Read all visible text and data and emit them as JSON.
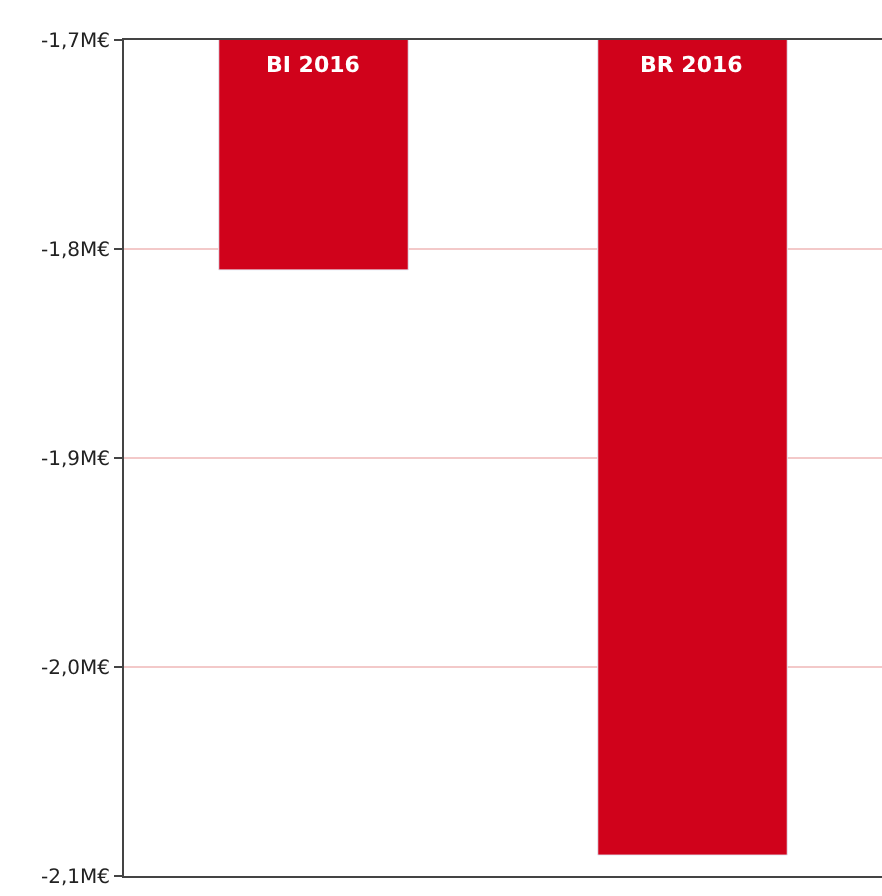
{
  "chart_data": {
    "type": "bar",
    "categories": [
      "BI 2016",
      "BR 2016"
    ],
    "values": [
      -1.81,
      -2.09
    ],
    "color": "#d0021b",
    "ylim": [
      -2.1,
      -1.7
    ],
    "yticks": [
      {
        "value": -2.1,
        "label": "-2,1M€"
      },
      {
        "value": -2.0,
        "label": "-2,0M€"
      },
      {
        "value": -1.9,
        "label": "-1,9M€"
      },
      {
        "value": -1.8,
        "label": "-1,8M€"
      },
      {
        "value": -1.7,
        "label": "-1,7M€"
      }
    ],
    "grid": "y",
    "legend": false
  }
}
